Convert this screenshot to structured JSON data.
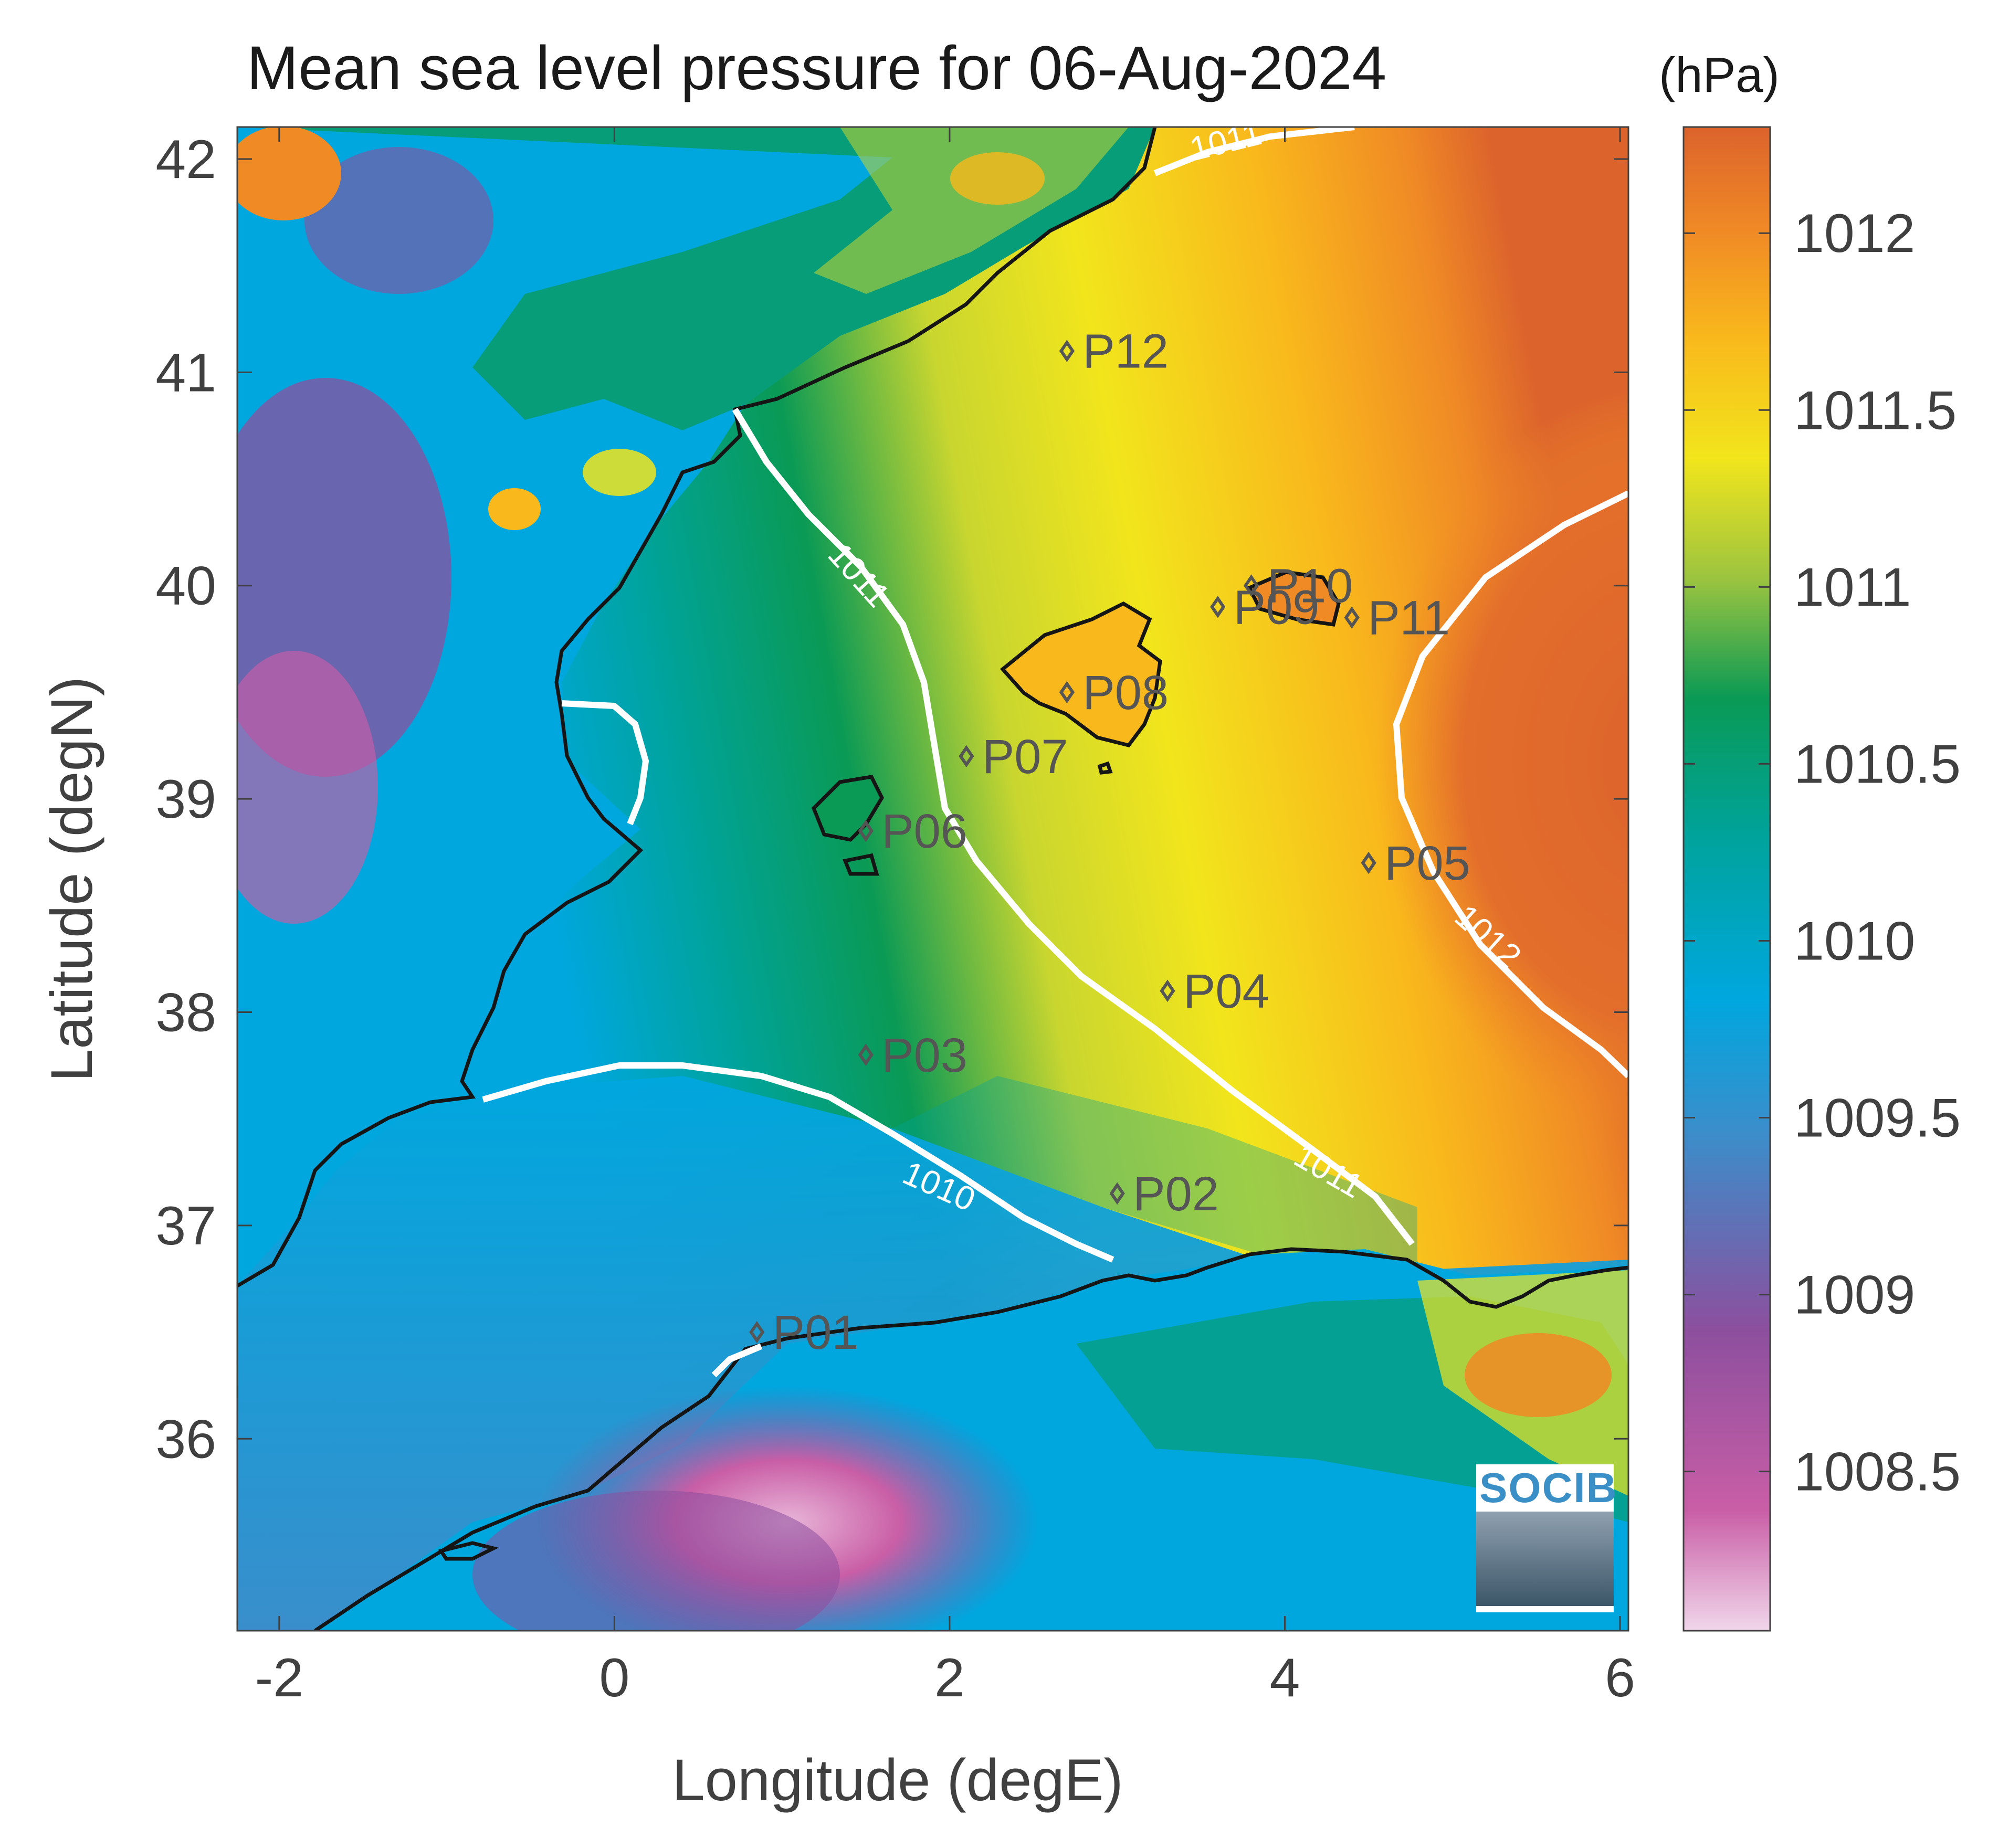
{
  "title": "Mean sea level pressure for 06-Aug-2024",
  "unit_label": "(hPa)",
  "x_axis": {
    "label": "Longitude (degE)",
    "ticks": [
      "-2",
      "0",
      "2",
      "4",
      "6"
    ],
    "range": [
      -2.25,
      6.05
    ]
  },
  "y_axis": {
    "label": "Latitude (degN)",
    "ticks": [
      "42",
      "41",
      "40",
      "39",
      "38",
      "37",
      "36"
    ],
    "range": [
      35.1,
      42.15
    ]
  },
  "colorbar": {
    "ticks": [
      "1012",
      "1011.5",
      "1011",
      "1010.5",
      "1010",
      "1009.5",
      "1009",
      "1008.5"
    ],
    "range": [
      1008.05,
      1012.3
    ],
    "colors": [
      "#f0d6ea",
      "#c95ea6",
      "#8c4f9e",
      "#3c8dca",
      "#00a7df",
      "#00a39a",
      "#0a9a55",
      "#9cc43f",
      "#f2e51c",
      "#f9b81c",
      "#f08a25",
      "#dc632c"
    ]
  },
  "points": [
    {
      "name": "P01",
      "lon": 0.85,
      "lat": 36.5
    },
    {
      "name": "P02",
      "lon": 3.0,
      "lat": 37.15
    },
    {
      "name": "P03",
      "lon": 1.5,
      "lat": 37.8
    },
    {
      "name": "P04",
      "lon": 3.3,
      "lat": 38.1
    },
    {
      "name": "P05",
      "lon": 4.5,
      "lat": 38.7
    },
    {
      "name": "P06",
      "lon": 1.5,
      "lat": 38.85
    },
    {
      "name": "P07",
      "lon": 2.1,
      "lat": 39.2
    },
    {
      "name": "P08",
      "lon": 2.7,
      "lat": 39.5
    },
    {
      "name": "P09",
      "lon": 3.6,
      "lat": 39.9
    },
    {
      "name": "P10",
      "lon": 3.8,
      "lat": 40.0
    },
    {
      "name": "P11",
      "lon": 4.4,
      "lat": 39.85
    },
    {
      "name": "P12",
      "lon": 2.7,
      "lat": 41.1
    }
  ],
  "contour_labels": [
    "1011",
    "1011",
    "1010",
    "1011",
    "1012"
  ],
  "logo": "SOCIB"
}
